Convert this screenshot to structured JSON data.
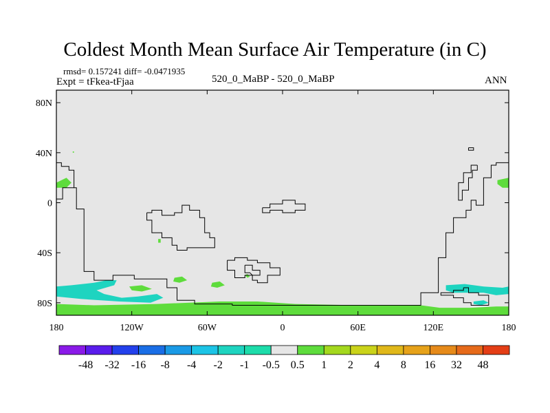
{
  "title": "Coldest Month Mean Surface Air Temperature (in C)",
  "stats_line": "rmsd= 0.157241 diff= -0.0471935",
  "expt_line": "Expt = tFkea-tFjaa",
  "center_label": "520_0_MaBP - 520_0_MaBP",
  "season_label": "ANN",
  "map": {
    "lon_range": [
      -180,
      180
    ],
    "lat_range": [
      -90,
      90
    ],
    "lat_ticks": [
      {
        "value": 80,
        "label": "80N"
      },
      {
        "value": 40,
        "label": "40N"
      },
      {
        "value": 0,
        "label": "0"
      },
      {
        "value": -40,
        "label": "40S"
      },
      {
        "value": -80,
        "label": "80S"
      }
    ],
    "lon_ticks": [
      {
        "value": -180,
        "label": "180"
      },
      {
        "value": -120,
        "label": "120W"
      },
      {
        "value": -60,
        "label": "60W"
      },
      {
        "value": 0,
        "label": "0"
      },
      {
        "value": 60,
        "label": "60E"
      },
      {
        "value": 120,
        "label": "120E"
      },
      {
        "value": 180,
        "label": "180"
      }
    ],
    "background_color": "#e6e6e6",
    "fill_regions": [
      {
        "level": "1",
        "color": "#5edc3c",
        "points": [
          [
            -180,
            -81
          ],
          [
            -150,
            -82
          ],
          [
            -100,
            -81
          ],
          [
            -50,
            -79
          ],
          [
            -20,
            -79
          ],
          [
            10,
            -81
          ],
          [
            60,
            -82
          ],
          [
            110,
            -82
          ],
          [
            125,
            -84
          ],
          [
            150,
            -84
          ],
          [
            170,
            -83
          ],
          [
            180,
            -83
          ],
          [
            180,
            -90
          ],
          [
            -180,
            -90
          ]
        ]
      },
      {
        "level": "1",
        "color": "#5edc3c",
        "points": [
          [
            -180,
            16
          ],
          [
            -172,
            20
          ],
          [
            -168,
            16
          ],
          [
            -172,
            12
          ],
          [
            -180,
            12
          ]
        ]
      },
      {
        "level": "1",
        "color": "#5edc3c",
        "points": [
          [
            180,
            20
          ],
          [
            171,
            18
          ],
          [
            171,
            15
          ],
          [
            175,
            12
          ],
          [
            180,
            12
          ]
        ]
      },
      {
        "level": "1",
        "color": "#5edc3c",
        "points": [
          [
            -86,
            -60
          ],
          [
            -80,
            -59
          ],
          [
            -76,
            -62
          ],
          [
            -82,
            -64
          ],
          [
            -87,
            -63
          ]
        ]
      },
      {
        "level": "1",
        "color": "#5edc3c",
        "points": [
          [
            -56,
            -64
          ],
          [
            -50,
            -63
          ],
          [
            -46,
            -66
          ],
          [
            -52,
            -68
          ],
          [
            -57,
            -67
          ]
        ]
      },
      {
        "level": "1",
        "color": "#5edc3c",
        "points": [
          [
            -99,
            -29
          ],
          [
            -97,
            -29
          ],
          [
            -97,
            -32
          ],
          [
            -99,
            -32
          ]
        ]
      },
      {
        "level": "1",
        "color": "#5edc3c",
        "points": [
          [
            -122,
            -67
          ],
          [
            -112,
            -66
          ],
          [
            -104,
            -69
          ],
          [
            -112,
            -71
          ],
          [
            -120,
            -70
          ]
        ]
      },
      {
        "level": "1",
        "color": "#5edc3c",
        "points": [
          [
            -30,
            -58
          ],
          [
            -28,
            -57
          ],
          [
            -26,
            -59
          ],
          [
            -28,
            -60
          ]
        ]
      },
      {
        "level": "1",
        "color": "#5edc3c",
        "points": [
          [
            -167,
            41
          ],
          [
            -166,
            41
          ],
          [
            -166,
            40
          ],
          [
            -167,
            40
          ]
        ]
      },
      {
        "level": "-1",
        "color": "#1ed4c0",
        "points": [
          [
            -180,
            -67
          ],
          [
            -168,
            -66
          ],
          [
            -150,
            -64
          ],
          [
            -140,
            -62
          ],
          [
            -132,
            -62
          ],
          [
            -134,
            -66
          ],
          [
            -148,
            -70
          ],
          [
            -142,
            -73
          ],
          [
            -128,
            -76
          ],
          [
            -115,
            -75
          ],
          [
            -100,
            -73
          ],
          [
            -95,
            -76
          ],
          [
            -105,
            -80
          ],
          [
            -130,
            -79
          ],
          [
            -160,
            -77
          ],
          [
            -180,
            -75
          ]
        ]
      },
      {
        "level": "-1",
        "color": "#1ed4c0",
        "points": [
          [
            130,
            -66
          ],
          [
            145,
            -65
          ],
          [
            160,
            -67
          ],
          [
            175,
            -68
          ],
          [
            180,
            -67
          ],
          [
            180,
            -73
          ],
          [
            170,
            -74
          ],
          [
            160,
            -72
          ],
          [
            148,
            -72
          ],
          [
            136,
            -72
          ],
          [
            130,
            -70
          ]
        ]
      },
      {
        "level": "-1",
        "color": "#1ed4c0",
        "points": [
          [
            152,
            -79
          ],
          [
            160,
            -78
          ],
          [
            164,
            -80
          ],
          [
            158,
            -82
          ],
          [
            152,
            -81
          ]
        ]
      }
    ],
    "coastlines": [
      [
        [
          -180,
          32
        ],
        [
          -176,
          32
        ],
        [
          -176,
          29
        ],
        [
          -170,
          29
        ],
        [
          -170,
          26
        ],
        [
          -166,
          26
        ],
        [
          -166,
          12
        ],
        [
          -175,
          12
        ],
        [
          -175,
          3
        ],
        [
          -180,
          3
        ]
      ],
      [
        [
          -166,
          12
        ],
        [
          -164,
          12
        ],
        [
          -164,
          -5
        ],
        [
          -158,
          -5
        ],
        [
          -158,
          -55
        ],
        [
          -150,
          -55
        ],
        [
          -150,
          -62
        ],
        [
          -135,
          -62
        ],
        [
          -135,
          -58
        ],
        [
          -118,
          -58
        ],
        [
          -118,
          -61
        ],
        [
          -92,
          -61
        ],
        [
          -92,
          -68
        ],
        [
          -84,
          -68
        ],
        [
          -84,
          -78
        ],
        [
          -70,
          -78
        ],
        [
          -70,
          -81
        ],
        [
          -40,
          -81
        ],
        [
          -40,
          -82
        ],
        [
          110,
          -82
        ],
        [
          110,
          -72
        ],
        [
          124,
          -72
        ],
        [
          124,
          -44
        ],
        [
          130,
          -44
        ],
        [
          130,
          -24
        ],
        [
          136,
          -24
        ],
        [
          136,
          -12
        ],
        [
          146,
          -12
        ],
        [
          146,
          -6
        ],
        [
          150,
          -6
        ],
        [
          150,
          2
        ],
        [
          154,
          2
        ],
        [
          154,
          -2
        ],
        [
          160,
          -2
        ],
        [
          160,
          20
        ],
        [
          166,
          20
        ],
        [
          166,
          30
        ],
        [
          170,
          30
        ],
        [
          170,
          32
        ],
        [
          180,
          32
        ]
      ],
      [
        [
          -108,
          -8
        ],
        [
          -108,
          -14
        ],
        [
          -104,
          -14
        ],
        [
          -104,
          -24
        ],
        [
          -96,
          -24
        ],
        [
          -96,
          -28
        ],
        [
          -88,
          -28
        ],
        [
          -88,
          -34
        ],
        [
          -84,
          -34
        ],
        [
          -84,
          -38
        ],
        [
          -76,
          -38
        ],
        [
          -76,
          -36
        ],
        [
          -54,
          -36
        ],
        [
          -54,
          -28
        ],
        [
          -58,
          -28
        ],
        [
          -58,
          -24
        ],
        [
          -62,
          -24
        ],
        [
          -62,
          -12
        ],
        [
          -66,
          -12
        ],
        [
          -66,
          -6
        ],
        [
          -74,
          -6
        ],
        [
          -74,
          -2
        ],
        [
          -80,
          -2
        ],
        [
          -80,
          -8
        ],
        [
          -86,
          -8
        ],
        [
          -86,
          -10
        ],
        [
          -96,
          -10
        ],
        [
          -96,
          -6
        ],
        [
          -104,
          -6
        ],
        [
          -104,
          -8
        ],
        [
          -108,
          -8
        ]
      ],
      [
        [
          -16,
          -4
        ],
        [
          -10,
          -4
        ],
        [
          -10,
          -1
        ],
        [
          0,
          -1
        ],
        [
          0,
          2
        ],
        [
          10,
          2
        ],
        [
          10,
          -1
        ],
        [
          18,
          -1
        ],
        [
          18,
          -6
        ],
        [
          10,
          -6
        ],
        [
          10,
          -8
        ],
        [
          0,
          -8
        ],
        [
          0,
          -6
        ],
        [
          -10,
          -6
        ],
        [
          -10,
          -8
        ],
        [
          -16,
          -8
        ],
        [
          -16,
          -4
        ]
      ],
      [
        [
          -44,
          -46
        ],
        [
          -38,
          -46
        ],
        [
          -38,
          -44
        ],
        [
          -28,
          -44
        ],
        [
          -28,
          -46
        ],
        [
          -20,
          -46
        ],
        [
          -20,
          -48
        ],
        [
          -10,
          -48
        ],
        [
          -10,
          -52
        ],
        [
          -2,
          -52
        ],
        [
          -2,
          -58
        ],
        [
          -12,
          -58
        ],
        [
          -12,
          -64
        ],
        [
          -20,
          -64
        ],
        [
          -20,
          -62
        ],
        [
          -24,
          -62
        ],
        [
          -24,
          -58
        ],
        [
          -30,
          -58
        ],
        [
          -30,
          -60
        ],
        [
          -38,
          -60
        ],
        [
          -38,
          -54
        ],
        [
          -44,
          -54
        ],
        [
          -44,
          -46
        ]
      ],
      [
        [
          -30,
          -50
        ],
        [
          -24,
          -50
        ],
        [
          -24,
          -54
        ],
        [
          -18,
          -54
        ],
        [
          -18,
          -58
        ],
        [
          -24,
          -58
        ],
        [
          -26,
          -56
        ],
        [
          -30,
          -56
        ],
        [
          -30,
          -50
        ]
      ],
      [
        [
          148,
          44
        ],
        [
          148,
          42
        ],
        [
          152,
          42
        ],
        [
          152,
          44
        ],
        [
          148,
          44
        ]
      ],
      [
        [
          155,
          30
        ],
        [
          155,
          26
        ],
        [
          151,
          26
        ],
        [
          151,
          20
        ],
        [
          148,
          20
        ],
        [
          148,
          10
        ],
        [
          143,
          10
        ],
        [
          143,
          2
        ],
        [
          140,
          2
        ],
        [
          140,
          16
        ],
        [
          144,
          16
        ],
        [
          144,
          24
        ],
        [
          150,
          24
        ],
        [
          150,
          30
        ],
        [
          155,
          30
        ]
      ],
      [
        [
          144,
          -68
        ],
        [
          148,
          -68
        ],
        [
          148,
          -72
        ],
        [
          156,
          -72
        ],
        [
          156,
          -74
        ],
        [
          164,
          -74
        ],
        [
          164,
          -82
        ],
        [
          150,
          -82
        ],
        [
          150,
          -80
        ],
        [
          144,
          -80
        ],
        [
          144,
          -76
        ],
        [
          136,
          -76
        ],
        [
          136,
          -74
        ],
        [
          126,
          -74
        ],
        [
          126,
          -72
        ],
        [
          136,
          -72
        ],
        [
          136,
          -70
        ],
        [
          144,
          -70
        ],
        [
          144,
          -68
        ]
      ]
    ]
  },
  "legend": {
    "colors": [
      "#8a1ae8",
      "#5a1cec",
      "#2340ec",
      "#1a6ee6",
      "#1a9ae6",
      "#1cc4e6",
      "#1ed4c0",
      "#1ddcaa",
      "#e6e6e6",
      "#5edc3c",
      "#a4d81e",
      "#cad31a",
      "#e0b81a",
      "#e6a21a",
      "#e68a1a",
      "#e66a1a",
      "#e43e16"
    ],
    "labels": [
      "-48",
      "-32",
      "-16",
      "-8",
      "-4",
      "-2",
      "-1",
      "-0.5",
      "0.5",
      "1",
      "2",
      "4",
      "8",
      "16",
      "32",
      "48"
    ]
  }
}
